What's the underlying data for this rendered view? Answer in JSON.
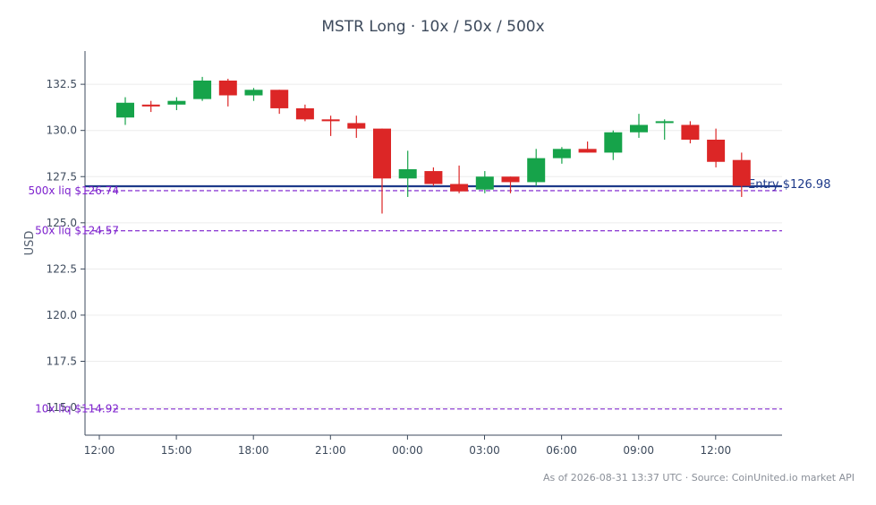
{
  "chart_data": {
    "type": "candlestick",
    "title": "MSTR Long · 10x / 50x / 500x",
    "ylabel": "USD",
    "xlabel": "",
    "ylim": [
      113.5,
      134.3
    ],
    "grid": "horizontal",
    "x_ticks": [
      "12:00",
      "15:00",
      "18:00",
      "21:00",
      "00:00",
      "03:00",
      "06:00",
      "09:00",
      "12:00"
    ],
    "y_ticks": [
      "115.0",
      "117.5",
      "120.0",
      "122.5",
      "125.0",
      "127.5",
      "130.0",
      "132.5"
    ],
    "y_tick_values": [
      115.0,
      117.5,
      120.0,
      122.5,
      125.0,
      127.5,
      130.0,
      132.5
    ],
    "colors": {
      "up": "#16a34a",
      "down": "#dc2626",
      "entry": "#1e3a8a",
      "liquidation": "#7e22ce",
      "axis": "#3d4a5c",
      "grid": "#ececec"
    },
    "candles": [
      {
        "open": 130.7,
        "high": 131.8,
        "low": 130.3,
        "close": 131.5
      },
      {
        "open": 131.4,
        "high": 131.6,
        "low": 131.0,
        "close": 131.3
      },
      {
        "open": 131.4,
        "high": 131.8,
        "low": 131.1,
        "close": 131.6
      },
      {
        "open": 131.7,
        "high": 132.9,
        "low": 131.6,
        "close": 132.7
      },
      {
        "open": 132.7,
        "high": 132.8,
        "low": 131.3,
        "close": 131.9
      },
      {
        "open": 131.9,
        "high": 132.3,
        "low": 131.6,
        "close": 132.2
      },
      {
        "open": 132.2,
        "high": 132.2,
        "low": 130.9,
        "close": 131.2
      },
      {
        "open": 131.2,
        "high": 131.4,
        "low": 130.5,
        "close": 130.6
      },
      {
        "open": 130.6,
        "high": 130.8,
        "low": 129.7,
        "close": 130.5
      },
      {
        "open": 130.4,
        "high": 130.8,
        "low": 129.6,
        "close": 130.1
      },
      {
        "open": 130.1,
        "high": 130.1,
        "low": 125.5,
        "close": 127.4
      },
      {
        "open": 127.4,
        "high": 128.9,
        "low": 126.4,
        "close": 127.9
      },
      {
        "open": 127.8,
        "high": 128.0,
        "low": 127.0,
        "close": 127.1
      },
      {
        "open": 127.1,
        "high": 128.1,
        "low": 126.6,
        "close": 126.7
      },
      {
        "open": 126.8,
        "high": 127.8,
        "low": 126.6,
        "close": 127.5
      },
      {
        "open": 127.5,
        "high": 127.5,
        "low": 126.6,
        "close": 127.2
      },
      {
        "open": 127.2,
        "high": 129.0,
        "low": 127.0,
        "close": 128.5
      },
      {
        "open": 128.5,
        "high": 129.1,
        "low": 128.2,
        "close": 129.0
      },
      {
        "open": 129.0,
        "high": 129.4,
        "low": 128.8,
        "close": 128.8
      },
      {
        "open": 128.8,
        "high": 130.0,
        "low": 128.4,
        "close": 129.9
      },
      {
        "open": 129.9,
        "high": 130.9,
        "low": 129.6,
        "close": 130.3
      },
      {
        "open": 130.4,
        "high": 130.6,
        "low": 129.5,
        "close": 130.5
      },
      {
        "open": 130.3,
        "high": 130.5,
        "low": 129.3,
        "close": 129.5
      },
      {
        "open": 129.5,
        "high": 130.1,
        "low": 128.0,
        "close": 128.3
      },
      {
        "open": 128.4,
        "high": 128.8,
        "low": 126.4,
        "close": 127.0
      }
    ],
    "lines": [
      {
        "label": "Entry $126.98",
        "value": 126.98,
        "kind": "entry"
      },
      {
        "label": "500x liq $126.74",
        "value": 126.74,
        "kind": "liquidation"
      },
      {
        "label": "50x liq $124.57",
        "value": 124.57,
        "kind": "liquidation"
      },
      {
        "label": "10x liq $114.92",
        "value": 114.92,
        "kind": "liquidation"
      }
    ]
  },
  "footnote": "As of 2026-08-31 13:37 UTC · Source: CoinUnited.io market API"
}
